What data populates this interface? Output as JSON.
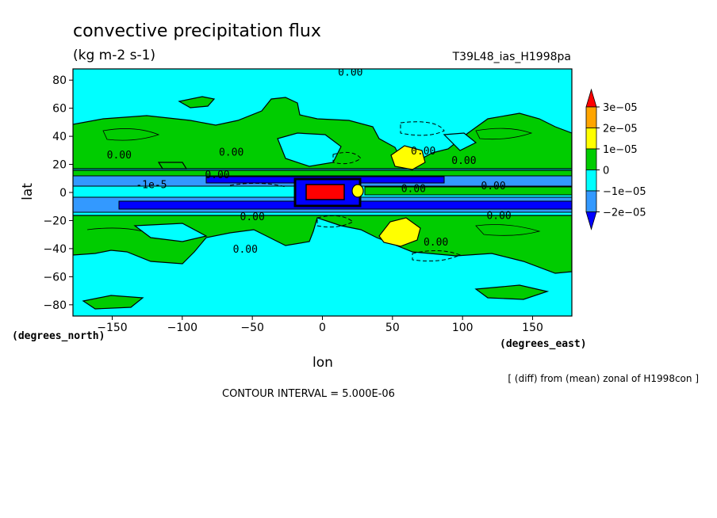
{
  "chart_data": {
    "type": "contour",
    "title": "convective precipitation flux",
    "units": "(kg m-2 s-1)",
    "run_label": "T39L48_ias_H1998pa",
    "xlabel": "lon",
    "ylabel": "lat",
    "x_unit_label": "(degrees_east)",
    "y_unit_label": "(degrees_north)",
    "xlim": [
      -178,
      178
    ],
    "ylim": [
      -88,
      88
    ],
    "x_ticks": [
      -150,
      -100,
      -50,
      0,
      50,
      100,
      150
    ],
    "x_tick_labels": [
      "−150",
      "−100",
      "−50",
      "0",
      "50",
      "100",
      "150"
    ],
    "y_ticks": [
      80,
      60,
      40,
      20,
      0,
      -20,
      -40,
      -60,
      -80
    ],
    "y_tick_labels": [
      "80",
      "60",
      "40",
      "20",
      "0",
      "−20",
      "−40",
      "−60",
      "−80"
    ],
    "contour_interval_text": "CONTOUR INTERVAL = 5.000E-06",
    "diff_note": "[ (diff) from (mean) zonal of H1998con ]",
    "colorbar": {
      "levels": [
        3e-05,
        2e-05,
        1e-05,
        0,
        -1e-05,
        -2e-05
      ],
      "labels": [
        "3e−05",
        "2e−05",
        "1e−05",
        "0",
        "−1e−05",
        "−2e−05"
      ],
      "colors": [
        "#ff0000",
        "#ffa500",
        "#ffff00",
        "#00cc00",
        "#00ffff",
        "#3399ff",
        "#0000ff"
      ]
    },
    "contour_labels": [
      {
        "text": "0.00",
        "lon": 20,
        "lat": 86
      },
      {
        "text": "0.00",
        "lon": -145,
        "lat": 27
      },
      {
        "text": "0.00",
        "lon": -65,
        "lat": 29
      },
      {
        "text": "0.00",
        "lon": -75,
        "lat": 13
      },
      {
        "text": "0.00",
        "lon": 72,
        "lat": 30
      },
      {
        "text": "0.00",
        "lon": 101,
        "lat": 23
      },
      {
        "text": "0.00",
        "lon": 122,
        "lat": 5
      },
      {
        "text": "0.00",
        "lon": 126,
        "lat": -16
      },
      {
        "text": "0.00",
        "lon": -50,
        "lat": -17
      },
      {
        "text": "0.00",
        "lon": -55,
        "lat": -40
      },
      {
        "text": "0.00",
        "lon": 81,
        "lat": -35
      },
      {
        "text": "0.00",
        "lon": 65,
        "lat": 3
      },
      {
        "text": "-1e-5",
        "lon": -122,
        "lat": 6
      }
    ]
  }
}
